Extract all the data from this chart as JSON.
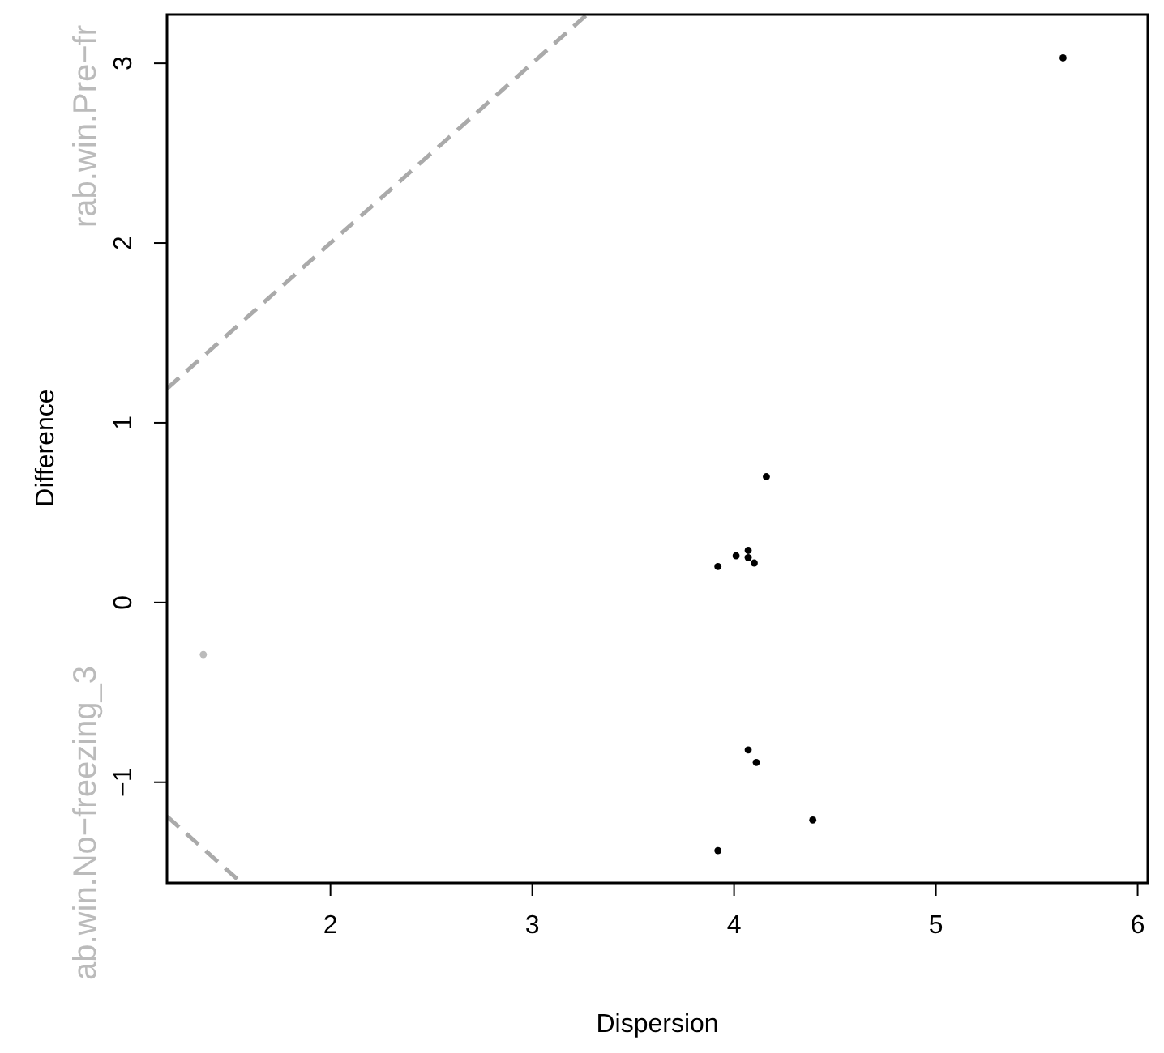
{
  "chart_data": {
    "type": "scatter",
    "xlabel": "Dispersion",
    "ylabel": "Difference",
    "xlim": [
      1.19,
      6.05
    ],
    "ylim": [
      -1.56,
      3.28
    ],
    "xticks": [
      2,
      3,
      4,
      5,
      6
    ],
    "yticks": [
      -1,
      0,
      1,
      2,
      3
    ],
    "grid": false,
    "annotations": [
      "rab.win.Pre−fr",
      "ab.win.No−freezing_3"
    ],
    "series": [
      {
        "type": "line",
        "color": "#aaaaaa",
        "line_style": "dashed",
        "marker": "none",
        "x": [
          1.19,
          3.28
        ],
        "values": [
          1.19,
          3.28
        ]
      },
      {
        "type": "line",
        "color": "#aaaaaa",
        "line_style": "dashed",
        "marker": "none",
        "x": [
          1.19,
          1.56
        ],
        "values": [
          -1.19,
          -1.56
        ]
      },
      {
        "color": "#bbbbbb",
        "marker": "circle",
        "x": [
          1.37
        ],
        "values": [
          -0.29
        ]
      },
      {
        "color": "#000000",
        "marker": "circle",
        "x": [
          5.63,
          4.16,
          3.92,
          4.01,
          4.07,
          4.07,
          4.1,
          4.07,
          4.11,
          4.39,
          3.92
        ],
        "values": [
          3.03,
          0.7,
          0.2,
          0.26,
          0.29,
          0.25,
          0.22,
          -0.82,
          -0.89,
          -1.21,
          -1.38
        ]
      }
    ]
  }
}
